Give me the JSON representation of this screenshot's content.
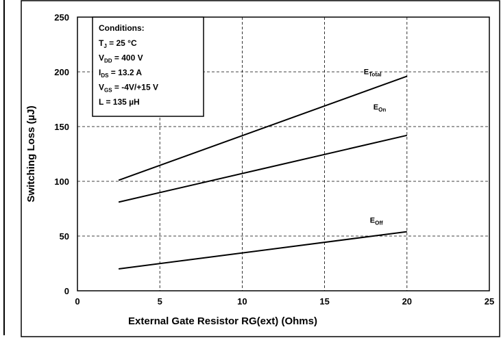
{
  "chart_data": {
    "type": "line",
    "xlabel": "External Gate Resistor RG(ext) (Ohms)",
    "ylabel": "Switching Loss (µJ)",
    "x": [
      2.5,
      20
    ],
    "series": [
      {
        "name": "E",
        "name_sub": "Total",
        "color": "#000000",
        "values": [
          101,
          196
        ]
      },
      {
        "name": "E",
        "name_sub": "On",
        "color": "#000000",
        "values": [
          81,
          142
        ]
      },
      {
        "name": "E",
        "name_sub": "Off",
        "color": "#000000",
        "values": [
          20,
          54
        ]
      }
    ],
    "xlim": [
      0,
      25
    ],
    "xticks": [
      0,
      5,
      10,
      15,
      20,
      25
    ],
    "ylim": [
      0,
      250
    ],
    "yticks": [
      0,
      50,
      100,
      150,
      200,
      250
    ],
    "grid": true,
    "conditions": {
      "title": "Conditions:",
      "lines": [
        {
          "text": "T",
          "sub": "J",
          "after": " = 25 °C"
        },
        {
          "text": "V",
          "sub": "DD",
          "after": " = 400 V"
        },
        {
          "text": "I",
          "sub": "DS",
          "after": " = 13.2 A"
        },
        {
          "text": "V",
          "sub": "GS",
          "after": " = -4V/+15 V"
        },
        {
          "text": "L = 135 µH"
        }
      ]
    }
  }
}
